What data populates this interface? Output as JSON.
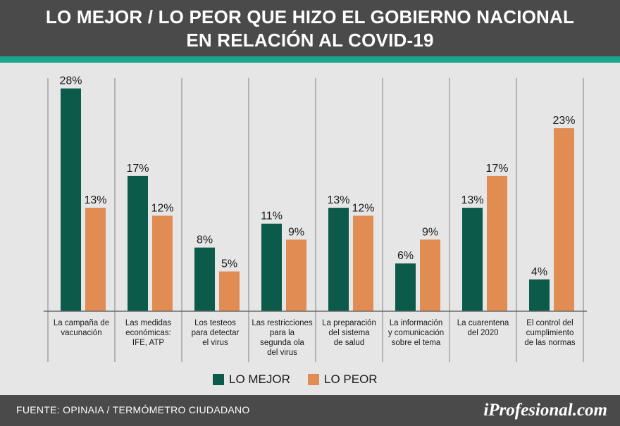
{
  "header": {
    "title_line1": "LO MEJOR / LO PEOR QUE HIZO EL GOBIERNO NACIONAL",
    "title_line2": "EN RELACIÓN AL COVID-19"
  },
  "colors": {
    "header_bg": "#4a4a4a",
    "accent_stripe": "#1aa58c",
    "lo_mejor": "#0b5a4a",
    "lo_peor": "#e08c53",
    "background": "#e6e6e6"
  },
  "chart_data": {
    "type": "bar",
    "categories": [
      [
        "La campaña de",
        "vacunación"
      ],
      [
        "Las medidas",
        "económicas:",
        "IFE, ATP"
      ],
      [
        "Los testeos",
        "para detectar",
        "el virus"
      ],
      [
        "Las restricciones",
        "para la",
        "segunda ola",
        "del virus"
      ],
      [
        "La preparación",
        "del sistema",
        "de salud"
      ],
      [
        "La información",
        "y comunicación",
        "sobre el tema"
      ],
      [
        "La cuarentena",
        "del 2020"
      ],
      [
        "El control del",
        "cumplimiento",
        "de las normas"
      ]
    ],
    "series": [
      {
        "name": "LO MEJOR",
        "values": [
          28,
          17,
          8,
          11,
          13,
          6,
          13,
          4
        ],
        "labels": [
          "28%",
          "17%",
          "8%",
          "11%",
          "13%",
          "6%",
          "13%",
          "4%"
        ]
      },
      {
        "name": "LO PEOR",
        "values": [
          13,
          12,
          5,
          9,
          12,
          9,
          17,
          23
        ],
        "labels": [
          "13%",
          "12%",
          "5%",
          "9%",
          "12%",
          "9%",
          "17%",
          "23%"
        ]
      }
    ],
    "ylim": [
      0,
      30
    ],
    "grid": false,
    "legend_position": "bottom"
  },
  "legend": {
    "lo_mejor": "LO MEJOR",
    "lo_peor": "LO PEOR"
  },
  "footer": {
    "source": "FUENTE:  OPINAIA / TERMÓMETRO CIUDADANO",
    "logo": "iProfesional.com"
  }
}
